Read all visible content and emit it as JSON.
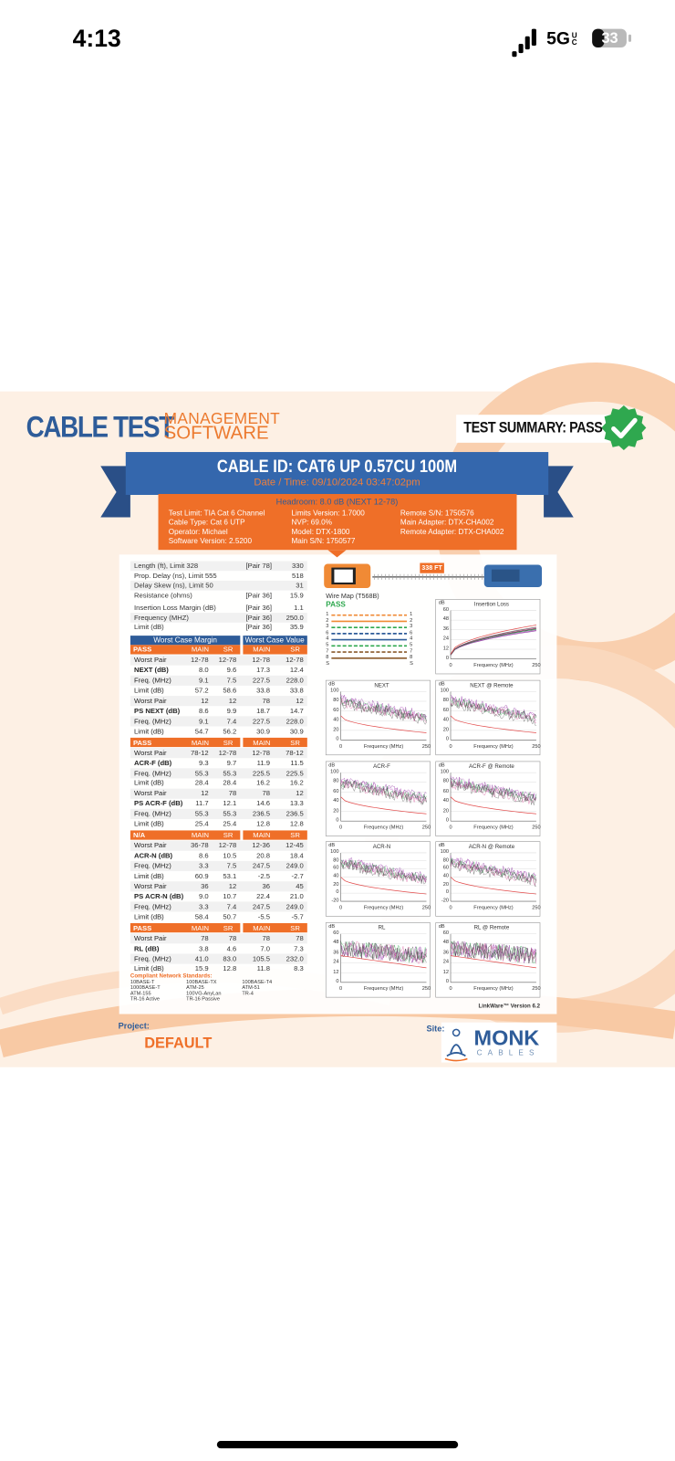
{
  "status_bar": {
    "time": "4:13",
    "network": "5G",
    "network_sub": "UC",
    "battery": "33"
  },
  "header": {
    "brand": "CABLE TEST",
    "brand_sub": [
      "MANAGEMENT",
      "SOFTWARE"
    ],
    "summary": "TEST SUMMARY: PASS"
  },
  "banner": {
    "cable_id": "CABLE ID: CAT6 UP 0.57CU 100M",
    "date_time": "Date / Time: 09/10/2024 03:47:02pm"
  },
  "info": {
    "headroom": "Headroom: 8.0 dB (NEXT 12-78)",
    "columns": [
      [
        "Test Limit: TIA Cat 6 Channel",
        "Cable Type: Cat 6 UTP",
        "Operator: Michael",
        "Software Version: 2.5200"
      ],
      [
        "Limits Version: 1.7000",
        "NVP: 69.0%",
        "Model: DTX-1800",
        "Main S/N: 1750577"
      ],
      [
        "Remote S/N: 1750576",
        "Main Adapter: DTX-CHA002",
        "Remote Adapter: DTX-CHA002"
      ]
    ]
  },
  "summary": {
    "rows": [
      {
        "label": "Length (ft), Limit 328",
        "pair": "[Pair 78]",
        "value": "330"
      },
      {
        "label": "Prop. Delay (ns), Limit 555",
        "value": "518"
      },
      {
        "label": "Delay Skew (ns), Limit 50",
        "value": "31"
      },
      {
        "label": "Resistance (ohms)",
        "pair": "[Pair 36]",
        "value": "15.9"
      },
      {
        "label": "Insertion Loss Margin (dB)",
        "pair": "[Pair 36]",
        "value": "1.1"
      },
      {
        "label": "Frequency (MHZ)",
        "pair": "[Pair 36]",
        "value": "250.0"
      },
      {
        "label": "Limit (dB)",
        "pair": "[Pair 36]",
        "value": "35.9"
      }
    ]
  },
  "wire_map": {
    "title": "Wire Map (T568B)",
    "status": "PASS",
    "length": "338 FT",
    "pins": [
      "1",
      "2",
      "3",
      "6",
      "4",
      "5",
      "7",
      "8",
      "S"
    ]
  },
  "results": {
    "headers": [
      "Worst Case Margin",
      "Worst Case Value"
    ],
    "sections": [
      {
        "columns": [
          "PASS",
          "MAIN",
          "SR",
          "MAIN",
          "SR"
        ],
        "groups": [
          [
            [
              "Worst Pair",
              "12-78",
              "12-78",
              "12-78",
              "12-78"
            ],
            [
              "NEXT (dB)",
              "8.0",
              "9.6",
              "17.3",
              "12.4"
            ],
            [
              "Freq. (MHz)",
              "9.1",
              "7.5",
              "227.5",
              "228.0"
            ],
            [
              "Limit (dB)",
              "57.2",
              "58.6",
              "33.8",
              "33.8"
            ]
          ],
          [
            [
              "Worst Pair",
              "12",
              "12",
              "78",
              "12"
            ],
            [
              "PS NEXT (dB)",
              "8.6",
              "9.9",
              "18.7",
              "14.7"
            ],
            [
              "Freq. (MHz)",
              "9.1",
              "7.4",
              "227.5",
              "228.0"
            ],
            [
              "Limit (dB)",
              "54.7",
              "56.2",
              "30.9",
              "30.9"
            ]
          ]
        ]
      },
      {
        "columns": [
          "PASS",
          "MAIN",
          "SR",
          "MAIN",
          "SR"
        ],
        "groups": [
          [
            [
              "Worst Pair",
              "78-12",
              "12-78",
              "12-78",
              "78-12"
            ],
            [
              "ACR-F (dB)",
              "9.3",
              "9.7",
              "11.9",
              "11.5"
            ],
            [
              "Freq. (MHz)",
              "55.3",
              "55.3",
              "225.5",
              "225.5"
            ],
            [
              "Limit (dB)",
              "28.4",
              "28.4",
              "16.2",
              "16.2"
            ]
          ],
          [
            [
              "Worst Pair",
              "12",
              "78",
              "78",
              "12"
            ],
            [
              "PS ACR-F (dB)",
              "11.7",
              "12.1",
              "14.6",
              "13.3"
            ],
            [
              "Freq. (MHz)",
              "55.3",
              "55.3",
              "236.5",
              "236.5"
            ],
            [
              "Limit (dB)",
              "25.4",
              "25.4",
              "12.8",
              "12.8"
            ]
          ]
        ]
      },
      {
        "columns": [
          "N/A",
          "MAIN",
          "SR",
          "MAIN",
          "SR"
        ],
        "groups": [
          [
            [
              "Worst Pair",
              "36-78",
              "12-78",
              "12-36",
              "12-45"
            ],
            [
              "ACR-N (dB)",
              "8.6",
              "10.5",
              "20.8",
              "18.4"
            ],
            [
              "Freq. (MHz)",
              "3.3",
              "7.5",
              "247.5",
              "249.0"
            ],
            [
              "Limit (dB)",
              "60.9",
              "53.1",
              "-2.5",
              "-2.7"
            ]
          ],
          [
            [
              "Worst Pair",
              "36",
              "12",
              "36",
              "45"
            ],
            [
              "PS ACR-N (dB)",
              "9.0",
              "10.7",
              "22.4",
              "21.0"
            ],
            [
              "Freq. (MHz)",
              "3.3",
              "7.4",
              "247.5",
              "249.0"
            ],
            [
              "Limit (dB)",
              "58.4",
              "50.7",
              "-5.5",
              "-5.7"
            ]
          ]
        ]
      },
      {
        "columns": [
          "PASS",
          "MAIN",
          "SR",
          "MAIN",
          "SR"
        ],
        "groups": [
          [
            [
              "Worst Pair",
              "78",
              "78",
              "78",
              "78"
            ],
            [
              "RL (dB)",
              "3.8",
              "4.6",
              "7.0",
              "7.3"
            ],
            [
              "Freq. (MHz)",
              "41.0",
              "83.0",
              "105.5",
              "232.0"
            ],
            [
              "Limit (dB)",
              "15.9",
              "12.8",
              "11.8",
              "8.3"
            ]
          ]
        ]
      }
    ]
  },
  "standards": {
    "title": "Compliant Network Standards:",
    "items": [
      "10BASE-T",
      "100BASE-TX",
      "100BASE-T4",
      "1000BASE-T",
      "ATM-25",
      "ATM-51",
      "ATM-155",
      "100VG-AnyLan",
      "TR-4",
      "TR-16 Active",
      "TR-16 Passive"
    ]
  },
  "graphs": {
    "y_unit": "dB",
    "x_label": "Frequency (MHz)",
    "x_ticks": [
      0,
      250
    ],
    "plots": [
      {
        "title": "Insertion Loss",
        "yticks": [
          60,
          48,
          36,
          24,
          12,
          0
        ]
      },
      {
        "title": "NEXT",
        "yticks": [
          100,
          80,
          60,
          40,
          20,
          0
        ]
      },
      {
        "title": "NEXT @ Remote",
        "yticks": [
          100,
          80,
          60,
          40,
          20,
          0
        ]
      },
      {
        "title": "ACR-F",
        "yticks": [
          100,
          80,
          60,
          40,
          20,
          0
        ]
      },
      {
        "title": "ACR-F @ Remote",
        "yticks": [
          100,
          80,
          60,
          40,
          20,
          0
        ]
      },
      {
        "title": "ACR-N",
        "yticks": [
          100,
          80,
          60,
          40,
          20,
          0,
          -20
        ]
      },
      {
        "title": "ACR-N @ Remote",
        "yticks": [
          100,
          80,
          60,
          40,
          20,
          0,
          -20
        ]
      },
      {
        "title": "RL",
        "yticks": [
          60,
          48,
          36,
          24,
          12,
          0
        ]
      },
      {
        "title": "RL @ Remote",
        "yticks": [
          60,
          48,
          36,
          24,
          12,
          0
        ]
      }
    ]
  },
  "footer": {
    "version": "LinkWare™ Version 6.2",
    "project_label": "Project:",
    "project": "DEFAULT",
    "site_label": "Site:",
    "logo": "MONK",
    "logo_sub": "CABLES"
  }
}
